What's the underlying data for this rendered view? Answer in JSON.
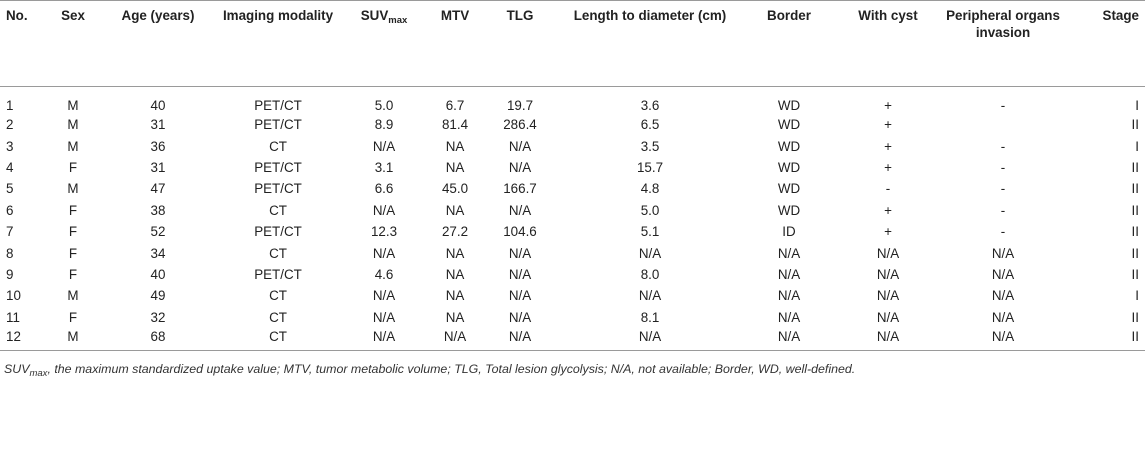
{
  "table": {
    "headers": [
      {
        "key": "no",
        "label": "No."
      },
      {
        "key": "sex",
        "label": "Sex"
      },
      {
        "key": "age",
        "label": "Age (years)"
      },
      {
        "key": "modality",
        "label": "Imaging modality"
      },
      {
        "key": "suv",
        "label": "SUV",
        "sub": "max"
      },
      {
        "key": "mtv",
        "label": "MTV"
      },
      {
        "key": "tlg",
        "label": "TLG"
      },
      {
        "key": "length",
        "label": "Length to diameter (cm)"
      },
      {
        "key": "border",
        "label": "Border"
      },
      {
        "key": "cyst",
        "label": "With cyst"
      },
      {
        "key": "invasion",
        "label": "Peripheral organs invasion"
      },
      {
        "key": "stage",
        "label": "Stage"
      }
    ],
    "rows": [
      [
        "1",
        "M",
        "40",
        "PET/CT",
        "5.0",
        "6.7",
        "19.7",
        "3.6",
        "WD",
        "+",
        "-",
        "I"
      ],
      [
        "2",
        "M",
        "31",
        "PET/CT",
        "8.9",
        "81.4",
        "286.4",
        "6.5",
        "WD",
        "+",
        "",
        "II"
      ],
      [
        "3",
        "M",
        "36",
        "CT",
        "N/A",
        "NA",
        "N/A",
        "3.5",
        "WD",
        "+",
        "-",
        "I"
      ],
      [
        "4",
        "F",
        "31",
        "PET/CT",
        "3.1",
        "NA",
        "N/A",
        "15.7",
        "WD",
        "+",
        "-",
        "II"
      ],
      [
        "5",
        "M",
        "47",
        "PET/CT",
        "6.6",
        "45.0",
        "166.7",
        "4.8",
        "WD",
        "-",
        "-",
        "II"
      ],
      [
        "6",
        "F",
        "38",
        "CT",
        "N/A",
        "NA",
        "N/A",
        "5.0",
        "WD",
        "+",
        "-",
        "II"
      ],
      [
        "7",
        "F",
        "52",
        "PET/CT",
        "12.3",
        "27.2",
        "104.6",
        "5.1",
        "ID",
        "+",
        "-",
        "II"
      ],
      [
        "8",
        "F",
        "34",
        "CT",
        "N/A",
        "NA",
        "N/A",
        "N/A",
        "N/A",
        "N/A",
        "N/A",
        "II"
      ],
      [
        "9",
        "F",
        "40",
        "PET/CT",
        "4.6",
        "NA",
        "N/A",
        "8.0",
        "N/A",
        "N/A",
        "N/A",
        "II"
      ],
      [
        "10",
        "M",
        "49",
        "CT",
        "N/A",
        "NA",
        "N/A",
        "N/A",
        "N/A",
        "N/A",
        "N/A",
        "I"
      ],
      [
        "11",
        "F",
        "32",
        "CT",
        "N/A",
        "NA",
        "N/A",
        "8.1",
        "N/A",
        "N/A",
        "N/A",
        "II"
      ],
      [
        "12",
        "M",
        "68",
        "CT",
        "N/A",
        "N/A",
        "N/A",
        "N/A",
        "N/A",
        "N/A",
        "N/A",
        "II"
      ]
    ]
  },
  "footnote": {
    "abbr": "SUV",
    "sub": "max",
    "text": ", the maximum standardized uptake value; MTV, tumor metabolic volume; TLG, Total lesion glycolysis; N/A, not available; Border, WD, well-defined."
  }
}
